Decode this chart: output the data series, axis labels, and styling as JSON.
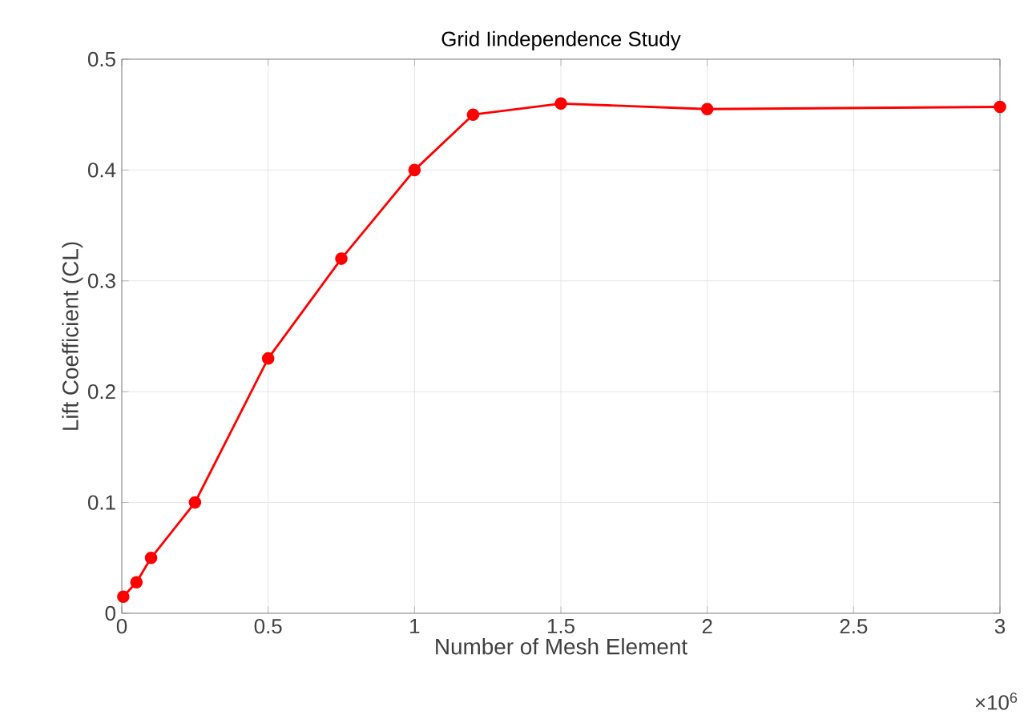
{
  "chart_data": {
    "type": "line",
    "title": "Grid Iindependence Study",
    "xlabel": "Number of Mesh Element",
    "ylabel": "Lift Coefficient (CL)",
    "annotations": [
      "×10$^{6}$"
    ],
    "x": [
      0.005,
      0.05,
      0.1,
      0.25,
      0.5,
      0.75,
      1,
      1.2,
      1.5,
      2,
      3
    ],
    "series": [
      {
        "color": "#ff0000",
        "values": [
          0.015,
          0.028,
          0.05,
          0.1,
          0.23,
          0.32,
          0.4,
          0.45,
          0.46,
          0.455,
          0.457
        ]
      }
    ],
    "xlim": [
      0,
      3
    ],
    "xticks": [
      0,
      0.5,
      1,
      1.5,
      2,
      2.5,
      3
    ],
    "ylim": [
      0,
      0.5
    ],
    "yticks": [
      0,
      0.1,
      0.2,
      0.3,
      0.4,
      0.5
    ],
    "grid": true,
    "marker": "circle",
    "line_style": "solid"
  }
}
